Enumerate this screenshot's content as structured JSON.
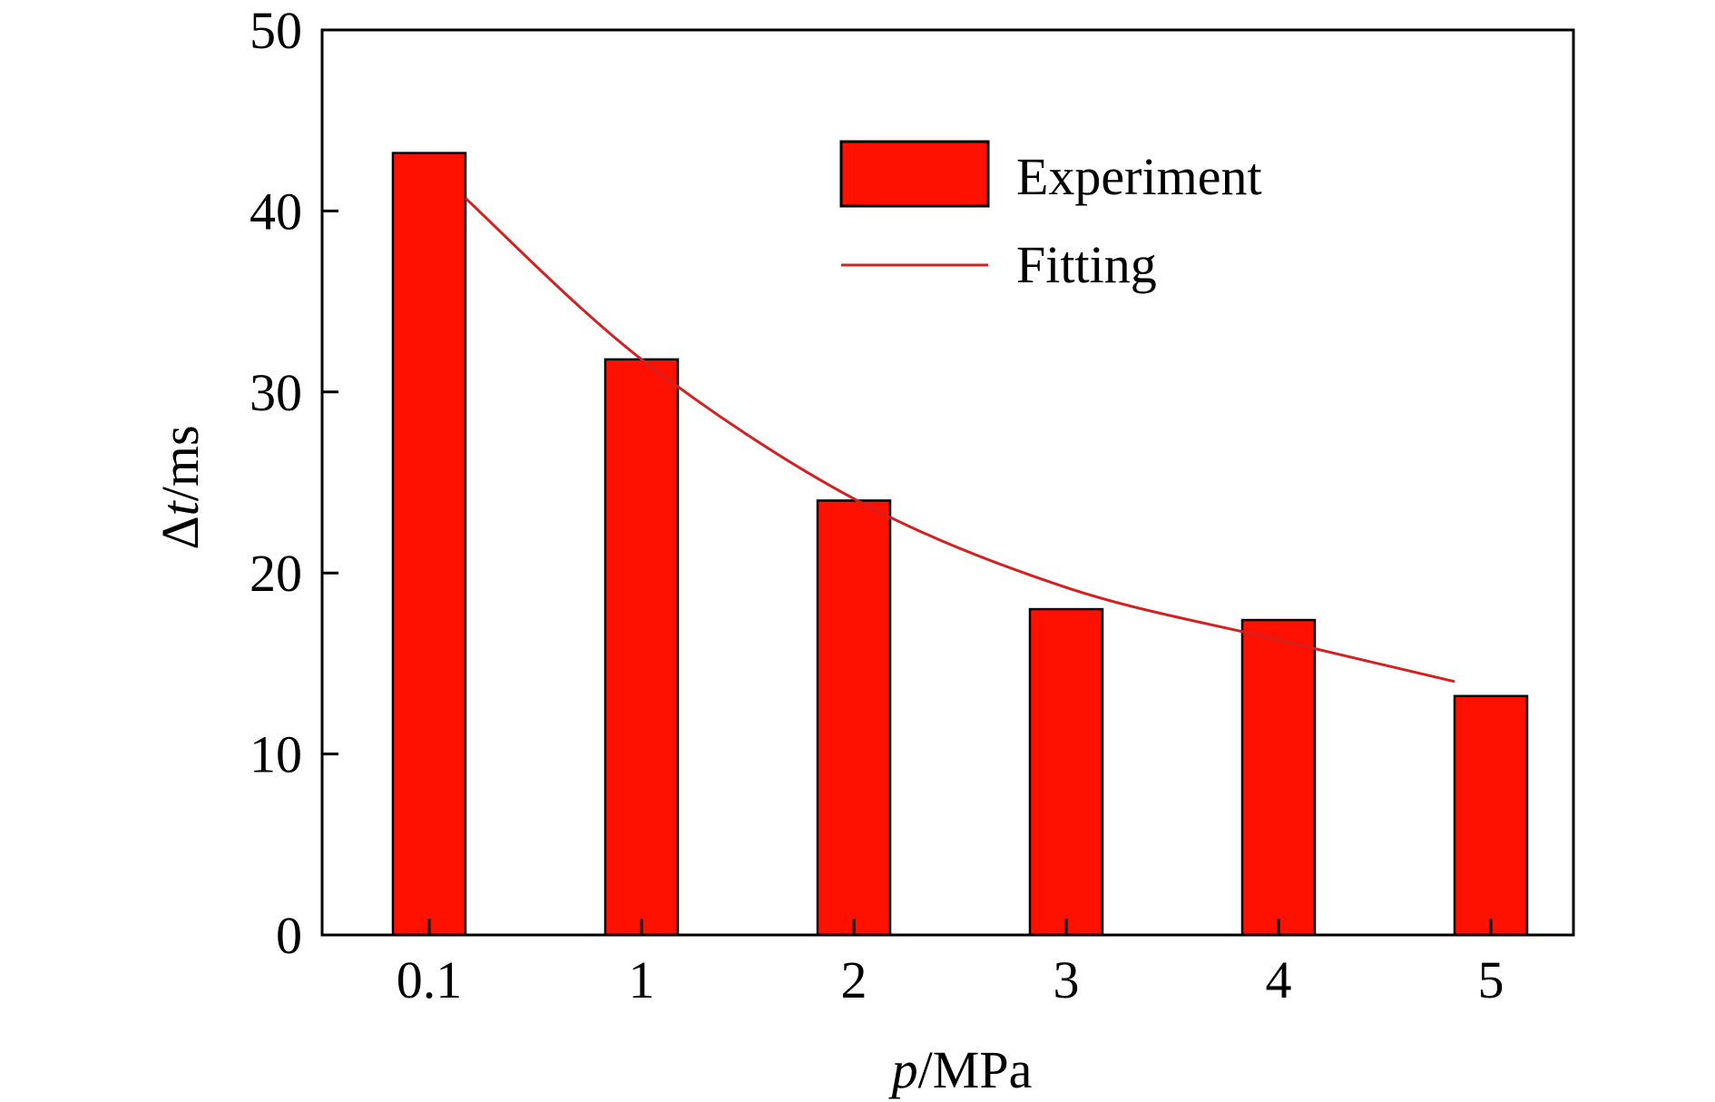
{
  "chart_data": {
    "type": "bar",
    "title": "",
    "xlabel": {
      "var": "p",
      "unit": "/MPa"
    },
    "ylabel": {
      "prefix": "Δ",
      "var": "t",
      "unit": "/ms"
    },
    "categories": [
      "0.1",
      "1",
      "2",
      "3",
      "4",
      "5"
    ],
    "ylim": [
      0,
      50
    ],
    "yticks": [
      0,
      10,
      20,
      30,
      40,
      50
    ],
    "grid": false,
    "legend_position": "top-right",
    "series": [
      {
        "name": "Experiment",
        "kind": "bar",
        "color": "#ff1100",
        "values": [
          43.2,
          31.8,
          24.0,
          18.0,
          17.4,
          13.2
        ]
      },
      {
        "name": "Fitting",
        "kind": "line",
        "color": "#d42020",
        "values": [
          40.7,
          31.8,
          24.1,
          19.2,
          16.3,
          14.0
        ]
      }
    ]
  }
}
